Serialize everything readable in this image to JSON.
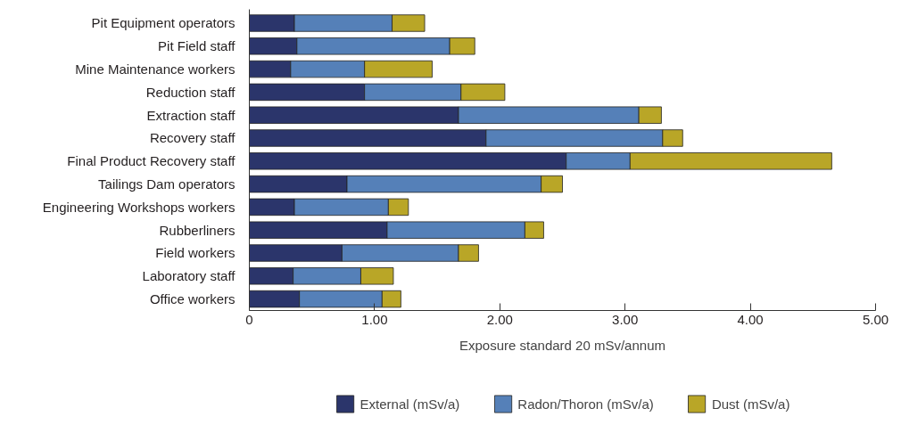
{
  "chart_data": {
    "type": "bar",
    "orientation": "horizontal",
    "stacked": true,
    "xlabel": "Exposure standard 20 mSv/annum",
    "categories": [
      "Pit Equipment operators",
      "Pit Field staff",
      "Mine Maintenance workers",
      "Reduction staff",
      "Extraction staff",
      "Recovery staff",
      "Final Product Recovery staff",
      "Tailings Dam operators",
      "Engineering Workshops workers",
      "Rubberliners",
      "Field workers",
      "Laboratory staff",
      "Office workers"
    ],
    "series": [
      {
        "name": "External (mSv/a)",
        "color": "#2b356b",
        "values": [
          0.36,
          0.38,
          0.33,
          0.92,
          1.67,
          1.89,
          2.53,
          0.78,
          0.36,
          1.1,
          0.74,
          0.35,
          0.4
        ]
      },
      {
        "name": "Radon/Thoron (mSv/a)",
        "color": "#5580b8",
        "values": [
          0.78,
          1.22,
          0.59,
          0.77,
          1.44,
          1.41,
          0.51,
          1.55,
          0.75,
          1.1,
          0.93,
          0.54,
          0.66
        ]
      },
      {
        "name": "Dust (mSv/a)",
        "color": "#b9a627",
        "values": [
          0.26,
          0.2,
          0.54,
          0.35,
          0.18,
          0.16,
          1.61,
          0.17,
          0.16,
          0.15,
          0.16,
          0.26,
          0.15
        ]
      }
    ],
    "xlim": [
      0,
      5.0
    ],
    "xticks": [
      0,
      {
        "value": 1.0,
        "label": "1.00"
      },
      {
        "value": 2.0,
        "label": "2.00"
      },
      {
        "value": 3.0,
        "label": "3.00"
      },
      {
        "value": 4.0,
        "label": "4.00"
      },
      {
        "value": 5.0,
        "label": "5.00"
      }
    ],
    "grid": false,
    "legend": "bottom"
  }
}
